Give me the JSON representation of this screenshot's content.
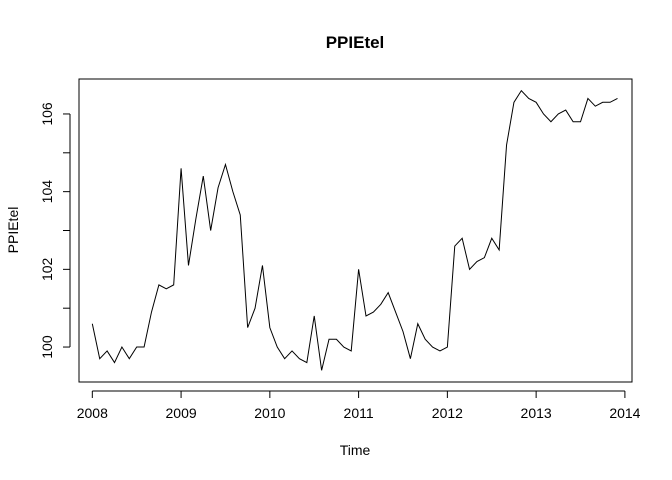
{
  "chart_data": {
    "type": "line",
    "title": "PPIEtel",
    "xlabel": "Time",
    "ylabel": "PPIEtel",
    "xlim": [
      2007.85,
      2014.08
    ],
    "ylim": [
      99.1,
      106.9
    ],
    "x_ticks": [
      2008,
      2009,
      2010,
      2011,
      2012,
      2013,
      2014
    ],
    "x_tick_labels": [
      "2008",
      "2009",
      "2010",
      "2011",
      "2012",
      "2013",
      "2014"
    ],
    "y_ticks": [
      100,
      102,
      104,
      106
    ],
    "y_tick_labels": [
      "100",
      "102",
      "104",
      "106"
    ],
    "y_minor_ticks": [
      101,
      103,
      105
    ],
    "grid": false,
    "legend": "none",
    "x_start": 2008,
    "frequency": 12,
    "series": [
      {
        "values": [
          100.6,
          99.7,
          99.9,
          99.6,
          100.0,
          99.7,
          100.0,
          100.0,
          100.9,
          101.6,
          101.5,
          101.6,
          104.6,
          102.1,
          103.3,
          104.4,
          103.0,
          104.1,
          104.7,
          104.0,
          103.4,
          100.5,
          101.0,
          102.1,
          100.5,
          100.0,
          99.7,
          99.9,
          99.7,
          99.6,
          100.8,
          99.4,
          100.2,
          100.2,
          100.0,
          99.9,
          102.0,
          100.8,
          100.9,
          101.1,
          101.4,
          100.9,
          100.4,
          99.7,
          100.6,
          100.2,
          100.0,
          99.9,
          100.0,
          102.6,
          102.8,
          102.0,
          102.2,
          102.3,
          102.8,
          102.5,
          105.2,
          106.3,
          106.6,
          106.4,
          106.3,
          106.0,
          105.8,
          106.0,
          106.1,
          105.8,
          105.8,
          106.4,
          106.2,
          106.3,
          106.3,
          106.4
        ]
      }
    ]
  }
}
